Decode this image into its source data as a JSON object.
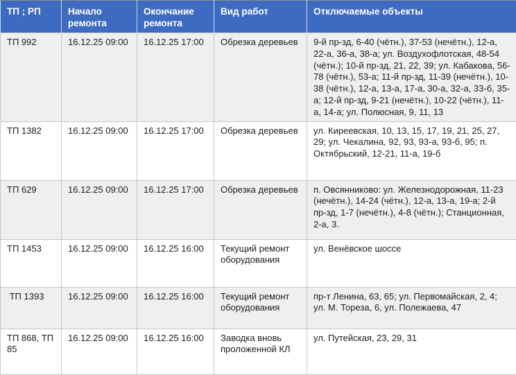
{
  "table": {
    "columns": [
      {
        "label": "ТП ; РП"
      },
      {
        "label": "Начало ремонта"
      },
      {
        "label": "Окончание ремонта"
      },
      {
        "label": "Вид работ"
      },
      {
        "label": "Отключаемые объекты"
      }
    ],
    "fields": [
      "tp",
      "start",
      "end",
      "work",
      "objects"
    ],
    "rows": [
      {
        "tp": "ТП 992",
        "start": "16.12.25 09:00",
        "end": "16.12.25 17:00",
        "work": "Обрезка деревьев",
        "objects": "9-й пр-зд, 6-40 (чётн.), 37-53 (нечётн.), 12-а, 22-а, 36-а, 38-а; ул. Воздухофлотская, 48-54 (чётн.); 10-й пр-зд, 21, 22, 39; ул. Кабакова, 56-78 (чётн.), 53-а; 11-й пр-зд, 11-39 (нечётн.), 10-38 (чётн.), 12-а, 13-а, 17-а, 30-а, 32-а, 33-б, 35-а; 12-й пр-зд, 9-21 (нечётн.), 10-22 (чётн.), 11-а, 14-а; ул. Полюсная, 9, 11, 13"
      },
      {
        "tp": "ТП 1382",
        "start": "16.12.25 09:00",
        "end": "16.12.25 17:00",
        "work": "Обрезка деревьев",
        "objects": "ул. Киреевская, 10, 13, 15, 17, 19, 21, 25, 27, 29; ул. Чекалина, 92, 93, 93-а, 93-б, 95; п. Октябрьский, 12-21, 11-а, 19-б"
      },
      {
        "tp": "ТП 629",
        "start": "16.12.25 09:00",
        "end": "16.12.25 17:00",
        "work": "Обрезка деревьев",
        "objects": "п. Овсянниково: ул. Железнодорожная, 11-23 (нечётн.), 14-24 (чётн.), 12-а, 13-а, 19-а; 2-й пр-зд, 1-7 (нечётн.), 4-8 (чётн.); Станционная, 2-а, 3."
      },
      {
        "tp": "ТП 1453",
        "start": "16.12.25 09:00",
        "end": "16.12.25 16:00",
        "work": "Текущий ремонт оборудования",
        "objects": "ул. Венёвское шоссе"
      },
      {
        "tp": " ТП 1393",
        "start": "16.12.25 09:00",
        "end": "16.12.25 16:00",
        "work": "Текущий ремонт оборудования",
        "objects": "пр-т Ленина, 63, 65; ул. Первомайская, 2, 4; ул. М. Тореза, 6, ул. Полежаева, 47"
      },
      {
        "tp": "ТП 868, ТП 85",
        "start": "16.12.25 09:00",
        "end": "16.12.25 16:00",
        "work": "Заводка вновь проложенной КЛ",
        "objects": "ул. Путейская, 23, 29, 31"
      }
    ]
  },
  "colors": {
    "header_bg": "#3e6bc2",
    "header_text": "#ffffff",
    "row_alt_bg": "#efefef",
    "border": "#c6c6c6",
    "body_text": "#1c1c1c"
  },
  "chart_data": {
    "type": "table",
    "title": "",
    "categories": [
      "ТП ; РП",
      "Начало ремонта",
      "Окончание ремонта",
      "Вид работ",
      "Отключаемые объекты"
    ]
  }
}
